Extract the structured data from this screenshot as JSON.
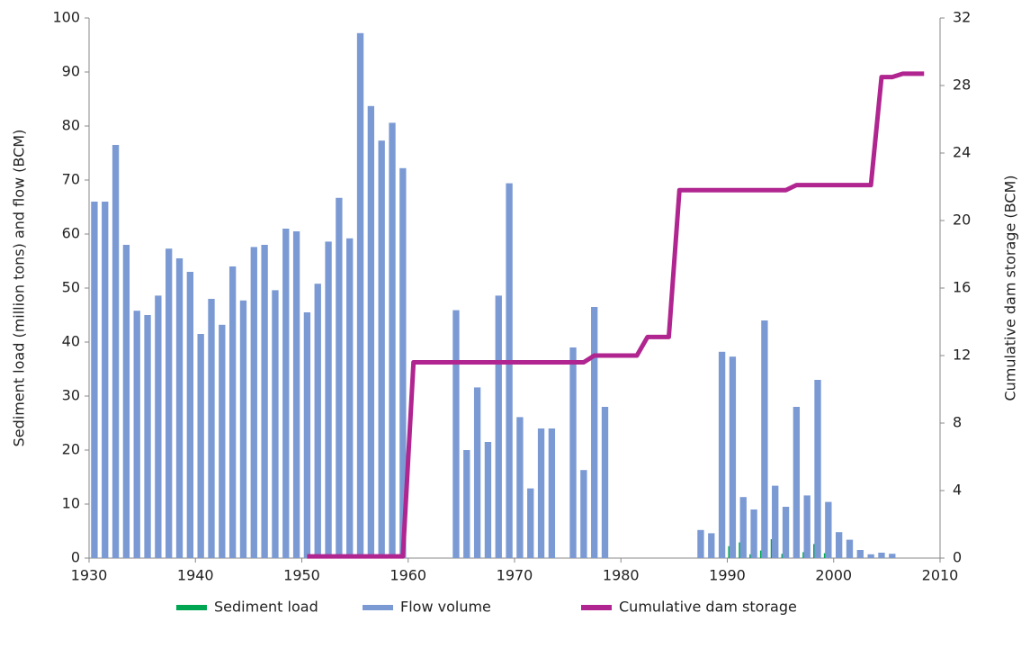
{
  "chart_data": {
    "type": "bar-line",
    "x": [
      1930,
      1931,
      1932,
      1933,
      1934,
      1935,
      1936,
      1937,
      1938,
      1939,
      1940,
      1941,
      1942,
      1943,
      1944,
      1945,
      1946,
      1947,
      1948,
      1949,
      1950,
      1951,
      1952,
      1953,
      1954,
      1955,
      1956,
      1957,
      1958,
      1959,
      1960,
      1961,
      1962,
      1963,
      1964,
      1965,
      1966,
      1967,
      1968,
      1969,
      1970,
      1971,
      1972,
      1973,
      1974,
      1975,
      1976,
      1977,
      1978,
      1979,
      1980,
      1981,
      1982,
      1983,
      1984,
      1985,
      1986,
      1987,
      1988,
      1989,
      1990,
      1991,
      1992,
      1993,
      1994,
      1995,
      1996,
      1997,
      1998,
      1999,
      2000,
      2001,
      2002,
      2003,
      2004,
      2005,
      2006,
      2007,
      2008
    ],
    "series": [
      {
        "name": "Sediment load",
        "color": "#00a651",
        "kind": "bar",
        "values": [
          null,
          null,
          null,
          null,
          null,
          null,
          null,
          null,
          null,
          null,
          null,
          null,
          null,
          null,
          null,
          null,
          null,
          null,
          null,
          null,
          null,
          null,
          null,
          null,
          null,
          null,
          null,
          null,
          null,
          null,
          null,
          null,
          null,
          null,
          null,
          null,
          null,
          null,
          null,
          null,
          null,
          null,
          null,
          null,
          null,
          null,
          null,
          null,
          null,
          null,
          null,
          null,
          null,
          null,
          null,
          null,
          null,
          null,
          null,
          null,
          2.2,
          2.9,
          0.7,
          1.4,
          3.5,
          0.8,
          null,
          1.1,
          2.6,
          0.9,
          null,
          null,
          null,
          null,
          null,
          null,
          null,
          null,
          null
        ]
      },
      {
        "name": "Flow volume",
        "color": "#7b9ad4",
        "kind": "bar",
        "values": [
          66,
          66,
          76.5,
          58,
          45.8,
          45,
          48.6,
          57.3,
          55.5,
          53,
          41.5,
          48,
          43.2,
          54,
          47.7,
          57.6,
          58,
          49.6,
          61,
          60.5,
          45.5,
          50.8,
          58.6,
          66.7,
          59.2,
          97.2,
          83.7,
          77.3,
          80.6,
          72.2,
          null,
          null,
          null,
          null,
          45.9,
          20,
          31.6,
          21.5,
          48.6,
          69.4,
          26.1,
          12.9,
          24,
          24,
          null,
          39,
          16.3,
          46.5,
          28,
          null,
          null,
          null,
          null,
          null,
          null,
          null,
          null,
          5.2,
          4.6,
          38.2,
          37.3,
          11.3,
          9,
          44,
          13.4,
          9.5,
          28,
          11.6,
          33,
          10.4,
          4.8,
          3.4,
          1.5,
          0.7,
          1,
          0.8,
          null,
          null,
          null
        ]
      },
      {
        "name": "Cumulative dam storage",
        "color": "#b0258f",
        "kind": "line",
        "axis": "y2",
        "values": [
          null,
          null,
          null,
          null,
          null,
          null,
          null,
          null,
          null,
          null,
          null,
          null,
          null,
          null,
          null,
          null,
          null,
          null,
          null,
          null,
          0.1,
          0.1,
          0.1,
          0.1,
          0.1,
          0.1,
          0.1,
          0.1,
          0.1,
          0.1,
          11.6,
          11.6,
          11.6,
          11.6,
          11.6,
          11.6,
          11.6,
          11.6,
          11.6,
          11.6,
          11.6,
          11.6,
          11.6,
          11.6,
          11.6,
          11.6,
          11.6,
          12,
          12,
          12,
          12,
          12,
          13.1,
          13.1,
          13.1,
          21.8,
          21.8,
          21.8,
          21.8,
          21.8,
          21.8,
          21.8,
          21.8,
          21.8,
          21.8,
          21.8,
          22.1,
          22.1,
          22.1,
          22.1,
          22.1,
          22.1,
          22.1,
          22.1,
          28.5,
          28.5,
          28.7,
          28.7,
          28.7
        ]
      }
    ],
    "ylabel": "Sediment load (million tons) and flow (BCM)",
    "y2label": "Cumulative dam storage (BCM)",
    "xlim": [
      1930,
      2010
    ],
    "xticks": [
      1930,
      1940,
      1950,
      1960,
      1970,
      1980,
      1990,
      2000,
      2010
    ],
    "ylim": [
      0,
      100
    ],
    "yticks": [
      0,
      10,
      20,
      30,
      40,
      50,
      60,
      70,
      80,
      90,
      100
    ],
    "y2lim": [
      0,
      32
    ],
    "y2ticks": [
      0,
      4,
      8,
      12,
      16,
      20,
      24,
      28,
      32
    ],
    "grid": false,
    "legend": "bottom"
  }
}
